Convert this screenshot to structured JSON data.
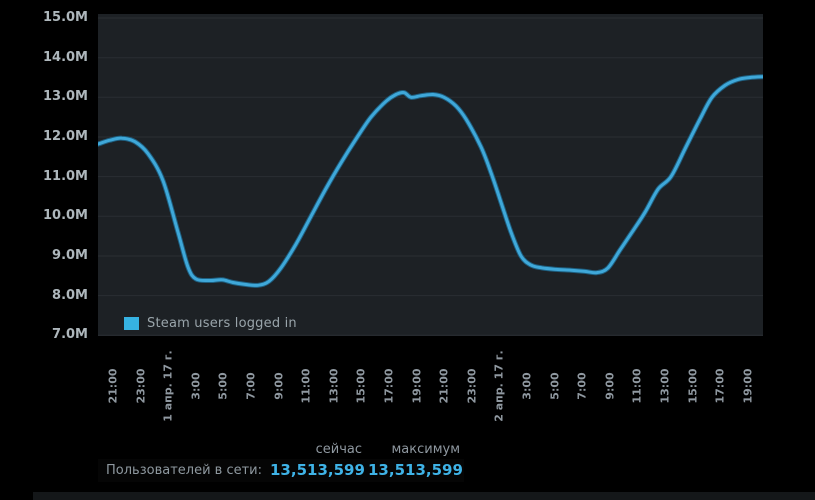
{
  "chart": {
    "legend": {
      "label": "Steam users logged in"
    },
    "colors": {
      "page_bg": "#000000",
      "plot_bg": "#1d2125",
      "grid": "#2a2e33",
      "line": "#3fa8d9",
      "line_halo": "#1e5f80",
      "swatch": "#36b2e2",
      "y_label": "#aeb7bc",
      "x_label": "#8f98a0",
      "legend_text": "#9aa5ab",
      "value_text": "#3fb3e7"
    }
  },
  "chart_data": {
    "type": "line",
    "title": "Steam users logged in",
    "categories": [
      "21:00",
      "23:00",
      "1 апр. 17 г.",
      "3:00",
      "5:00",
      "7:00",
      "9:00",
      "11:00",
      "13:00",
      "15:00",
      "17:00",
      "19:00",
      "21:00",
      "23:00",
      "2 апр. 17 г.",
      "3:00",
      "5:00",
      "7:00",
      "9:00",
      "11:00",
      "13:00",
      "15:00",
      "17:00",
      "19:00"
    ],
    "series": [
      {
        "name": "Steam users logged in",
        "values": [
          11.93,
          11.83,
          10.7,
          8.42,
          8.39,
          8.28,
          8.65,
          9.85,
          11.1,
          12.2,
          12.95,
          13.03,
          13.0,
          12.2,
          10.35,
          8.8,
          8.65,
          8.62,
          8.65,
          9.8,
          10.8,
          12.0,
          13.25,
          13.5
        ]
      }
    ],
    "unit": "M",
    "ylim": [
      7.0,
      15.0
    ],
    "yticks": [
      "15.0M",
      "14.0M",
      "13.0M",
      "12.0M",
      "11.0M",
      "10.0M",
      "9.0M",
      "8.0M",
      "7.0M"
    ],
    "ytick_values": [
      15.0,
      14.0,
      13.0,
      12.0,
      11.0,
      10.0,
      9.0,
      8.0,
      7.0
    ],
    "grid": "horizontal",
    "legend_position": "bottom-left-inside",
    "curve_points": [
      [
        0,
        11.82
      ],
      [
        0.018,
        11.92
      ],
      [
        0.036,
        11.97
      ],
      [
        0.0556,
        11.88
      ],
      [
        0.0752,
        11.58
      ],
      [
        0.0977,
        10.9
      ],
      [
        0.1203,
        9.6
      ],
      [
        0.1353,
        8.72
      ],
      [
        0.1474,
        8.42
      ],
      [
        0.1684,
        8.38
      ],
      [
        0.1865,
        8.4
      ],
      [
        0.203,
        8.33
      ],
      [
        0.2226,
        8.28
      ],
      [
        0.2406,
        8.26
      ],
      [
        0.2571,
        8.36
      ],
      [
        0.2752,
        8.7
      ],
      [
        0.2977,
        9.3
      ],
      [
        0.3203,
        10.0
      ],
      [
        0.3429,
        10.7
      ],
      [
        0.3654,
        11.35
      ],
      [
        0.388,
        11.95
      ],
      [
        0.4105,
        12.5
      ],
      [
        0.4331,
        12.9
      ],
      [
        0.4481,
        13.07
      ],
      [
        0.4602,
        13.12
      ],
      [
        0.4707,
        13.0
      ],
      [
        0.4857,
        13.04
      ],
      [
        0.5038,
        13.07
      ],
      [
        0.5203,
        13.0
      ],
      [
        0.5383,
        12.78
      ],
      [
        0.5534,
        12.45
      ],
      [
        0.5759,
        11.75
      ],
      [
        0.591,
        11.1
      ],
      [
        0.606,
        10.35
      ],
      [
        0.6211,
        9.6
      ],
      [
        0.6361,
        9.0
      ],
      [
        0.6511,
        8.77
      ],
      [
        0.6677,
        8.7
      ],
      [
        0.6887,
        8.66
      ],
      [
        0.7113,
        8.64
      ],
      [
        0.7323,
        8.61
      ],
      [
        0.7504,
        8.58
      ],
      [
        0.7669,
        8.7
      ],
      [
        0.785,
        9.15
      ],
      [
        0.803,
        9.6
      ],
      [
        0.8226,
        10.1
      ],
      [
        0.8421,
        10.68
      ],
      [
        0.8617,
        11.0
      ],
      [
        0.8827,
        11.7
      ],
      [
        0.9053,
        12.45
      ],
      [
        0.9233,
        13.0
      ],
      [
        0.9429,
        13.3
      ],
      [
        0.9624,
        13.45
      ],
      [
        0.9805,
        13.5
      ],
      [
        1,
        13.52
      ]
    ]
  },
  "stats": {
    "header": {
      "now": "сейчас",
      "max": "максимум"
    },
    "row": {
      "label": "Пользователей в сети:",
      "now": "13,513,599",
      "max": "13,513,599"
    }
  }
}
